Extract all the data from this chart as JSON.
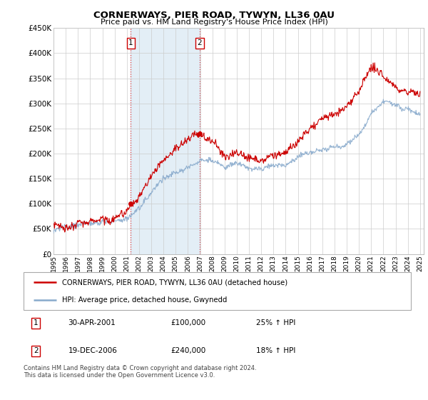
{
  "title": "CORNERWAYS, PIER ROAD, TYWYN, LL36 0AU",
  "subtitle": "Price paid vs. HM Land Registry's House Price Index (HPI)",
  "ylim": [
    0,
    450000
  ],
  "yticks": [
    0,
    50000,
    100000,
    150000,
    200000,
    250000,
    300000,
    350000,
    400000,
    450000
  ],
  "ytick_labels": [
    "£0",
    "£50K",
    "£100K",
    "£150K",
    "£200K",
    "£250K",
    "£300K",
    "£350K",
    "£400K",
    "£450K"
  ],
  "x_start_year": 1995,
  "x_end_year": 2025,
  "line1_color": "#cc0000",
  "line2_color": "#88aacc",
  "sale1_year": 2001.33,
  "sale1_price": 100000,
  "sale2_year": 2006.97,
  "sale2_price": 240000,
  "sale1_label": "1",
  "sale2_label": "2",
  "legend_line1": "CORNERWAYS, PIER ROAD, TYWYN, LL36 0AU (detached house)",
  "legend_line2": "HPI: Average price, detached house, Gwynedd",
  "table_row1": [
    "1",
    "30-APR-2001",
    "£100,000",
    "25% ↑ HPI"
  ],
  "table_row2": [
    "2",
    "19-DEC-2006",
    "£240,000",
    "18% ↑ HPI"
  ],
  "footnote": "Contains HM Land Registry data © Crown copyright and database right 2024.\nThis data is licensed under the Open Government Licence v3.0.",
  "vline1_year": 2001.33,
  "vline2_year": 2006.97,
  "hpi_key": {
    "1995": 45000,
    "1996": 47000,
    "1997": 50000,
    "1998": 53000,
    "1999": 57000,
    "2000": 64000,
    "2001": 72000,
    "2002": 95000,
    "2003": 125000,
    "2004": 155000,
    "2005": 172000,
    "2006": 183000,
    "2007": 195000,
    "2008": 188000,
    "2009": 170000,
    "2010": 178000,
    "2011": 172000,
    "2012": 167000,
    "2013": 170000,
    "2014": 178000,
    "2015": 192000,
    "2016": 205000,
    "2017": 218000,
    "2018": 226000,
    "2019": 230000,
    "2020": 245000,
    "2021": 285000,
    "2022": 308000,
    "2023": 295000,
    "2024": 285000,
    "2025": 278000
  },
  "prop_key": {
    "1995": 60000,
    "1996": 63000,
    "1997": 67000,
    "1998": 73000,
    "1999": 78000,
    "2000": 87000,
    "2001": 100000,
    "2002": 128000,
    "2003": 168000,
    "2004": 205000,
    "2005": 228000,
    "2006": 235000,
    "2007": 248000,
    "2008": 230000,
    "2009": 210000,
    "2010": 220000,
    "2011": 210000,
    "2012": 205000,
    "2013": 212000,
    "2014": 224000,
    "2015": 245000,
    "2016": 262000,
    "2017": 285000,
    "2018": 298000,
    "2019": 318000,
    "2020": 342000,
    "2021": 385000,
    "2022": 368000,
    "2023": 340000,
    "2024": 328000,
    "2025": 318000
  },
  "hpi_noise_std": 2500,
  "prop_noise_std": 3500
}
